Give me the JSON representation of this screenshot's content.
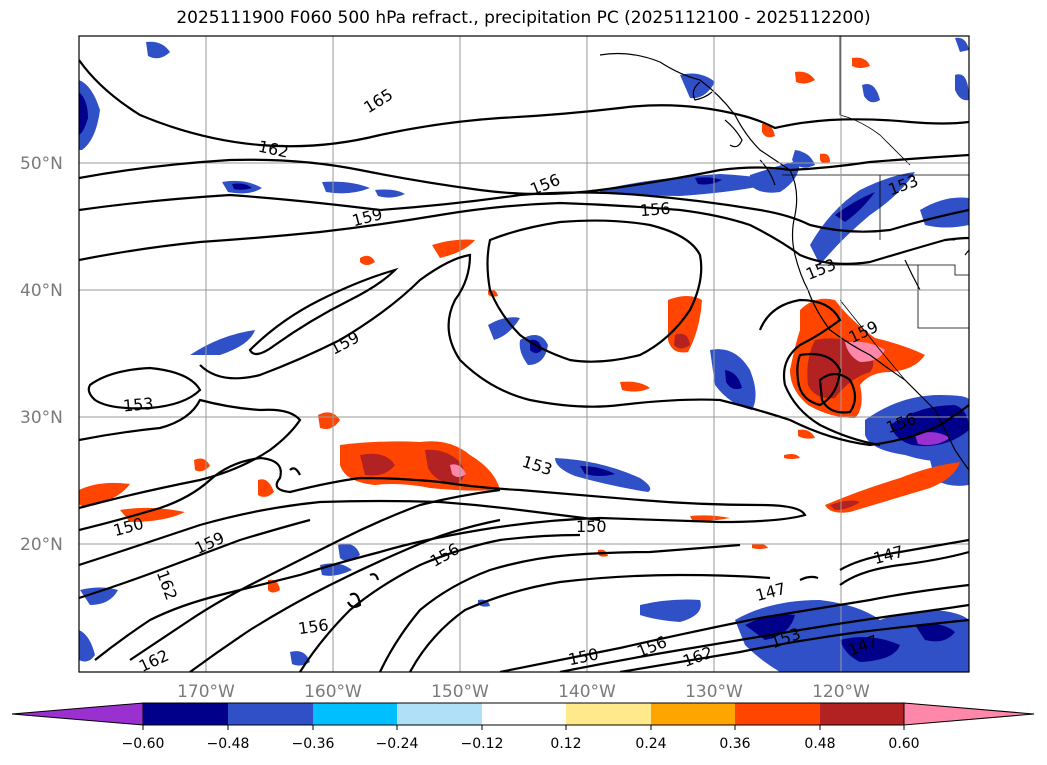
{
  "title": "2025111900 F060 500 hPa refract., precipitation PC (2025112100 - 2025112200)",
  "lat_labels": [
    "50°N",
    "40°N",
    "30°N",
    "20°N"
  ],
  "lon_labels": [
    "170°W",
    "160°W",
    "150°W",
    "140°W",
    "130°W",
    "120°W"
  ],
  "colorbar": {
    "ticks": [
      "−0.60",
      "−0.48",
      "−0.36",
      "−0.24",
      "−0.12",
      "0.12",
      "0.24",
      "0.36",
      "0.48",
      "0.60"
    ],
    "colors": [
      "#9b30d0",
      "#00008b",
      "#3050c8",
      "#00bfff",
      "#b0e0f8",
      "#ffffff",
      "#ffe98a",
      "#ffa500",
      "#ff4500",
      "#b22222",
      "#ff88aa",
      "#ff88aa"
    ]
  },
  "contour_labels": [
    "165",
    "162",
    "156",
    "156",
    "159",
    "153",
    "153",
    "159",
    "159",
    "153",
    "156",
    "153",
    "150",
    "159",
    "162",
    "156",
    "150",
    "156",
    "147",
    "147",
    "147",
    "153",
    "150",
    "156",
    "162"
  ],
  "colors": {
    "contour": "#000000",
    "grid": "#9a9a9a",
    "axis_label": "#7a7a7a"
  }
}
